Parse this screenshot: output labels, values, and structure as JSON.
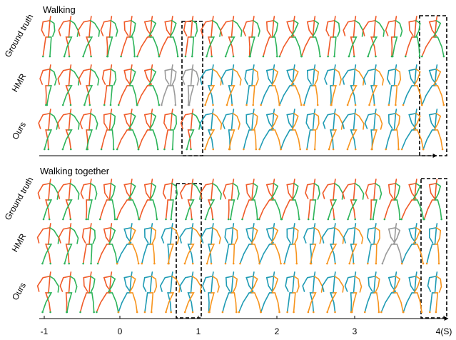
{
  "panels": [
    {
      "title": "Walking",
      "rows": [
        "Ground truth",
        "HMR",
        "Ours"
      ]
    },
    {
      "title": "Walking together",
      "rows": [
        "Ground truth",
        "HMR",
        "Ours"
      ]
    }
  ],
  "time_axis": {
    "ticks": [
      "-1",
      "0",
      "1",
      "2",
      "3",
      "4(S)"
    ]
  }
}
